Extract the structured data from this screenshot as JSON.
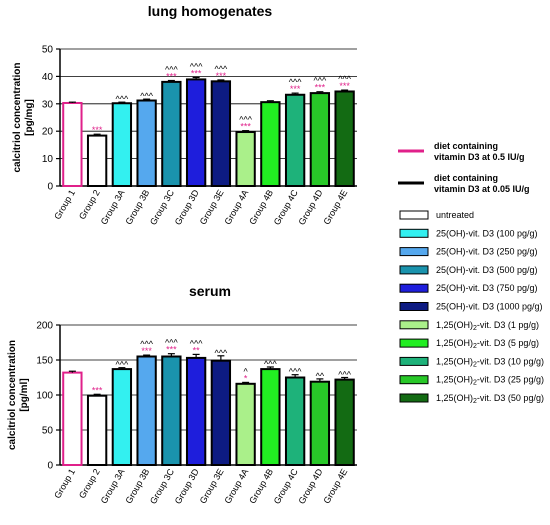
{
  "chart_data": [
    {
      "type": "bar",
      "title": "lung homogenates",
      "ylabel": "calcitriol concentration\n[pg/mg]",
      "ylim": [
        0,
        50
      ],
      "yticks": [
        0,
        10,
        20,
        30,
        40,
        50
      ],
      "grid": "horizontal lines",
      "categories": [
        "Group 1",
        "Group 2",
        "Group 3A",
        "Group 3B",
        "Group 3C",
        "Group 3D",
        "Group 3E",
        "Group 4A",
        "Group 4B",
        "Group 4C",
        "Group 4D",
        "Group 4E"
      ],
      "values": [
        30.3,
        18.4,
        30.2,
        31.2,
        38.0,
        38.9,
        38.2,
        19.7,
        30.6,
        33.3,
        33.9,
        34.5
      ],
      "errors": [
        0.3,
        0.5,
        0.4,
        0.5,
        0.5,
        0.7,
        0.5,
        0.5,
        0.5,
        0.6,
        0.5,
        0.5
      ],
      "significance_pink": [
        "",
        "***",
        "",
        "",
        "***",
        "***",
        "***",
        "***",
        "",
        "***",
        "***",
        "***"
      ],
      "significance_black": [
        "",
        "",
        "^^^",
        "^^^",
        "^^^",
        "^^^",
        "^^^",
        "^^^",
        "",
        "^^^",
        "^^^",
        "^^^"
      ]
    },
    {
      "type": "bar",
      "title": "serum",
      "ylabel": "calcitriol concentration\n[pg/ml]",
      "ylim": [
        0,
        200
      ],
      "yticks": [
        0,
        50,
        100,
        150,
        200
      ],
      "grid": "horizontal lines",
      "categories": [
        "Group 1",
        "Group 2",
        "Group 3A",
        "Group 3B",
        "Group 3C",
        "Group 3D",
        "Group 3E",
        "Group 4A",
        "Group 4B",
        "Group 4C",
        "Group 4D",
        "Group 4E"
      ],
      "values": [
        132,
        99,
        137,
        155,
        155,
        153,
        149,
        116,
        137,
        125,
        119,
        122
      ],
      "errors": [
        2,
        2,
        2,
        2,
        4,
        5,
        7,
        2,
        3,
        4,
        4,
        3
      ],
      "significance_pink": [
        "",
        "***",
        "",
        "***",
        "***",
        "**",
        "",
        "*",
        "",
        "",
        "",
        ""
      ],
      "significance_black": [
        "",
        "",
        "^^^",
        "^^^",
        "^^^",
        "^^^",
        "^^^",
        "^",
        "^^^",
        "^^^",
        "^^",
        "^^^"
      ]
    }
  ],
  "legend": [
    {
      "label": "diet containing\nvitamin D3 at 0.5 IU/g",
      "style": "line",
      "color": "#e0208a"
    },
    {
      "label": "diet containing\nvitamin D3 at 0.05 IU/g",
      "style": "line",
      "color": "#000000"
    },
    {
      "label": "untreated",
      "style": "box",
      "color": "#ffffff"
    },
    {
      "label": "25(OH)-vit. D3 (100 pg/g)",
      "style": "box",
      "color": "#33f0f0"
    },
    {
      "label": "25(OH)-vit. D3 (250 pg/g)",
      "style": "box",
      "color": "#55a8ee"
    },
    {
      "label": "25(OH)-vit. D3 (500 pg/g)",
      "style": "box",
      "color": "#1a93ad"
    },
    {
      "label": "25(OH)-vit. D3 (750 pg/g)",
      "style": "box",
      "color": "#1e1edc"
    },
    {
      "label": "25(OH)-vit. D3 (1000 pg/g)",
      "style": "box",
      "color": "#0d1b82"
    },
    {
      "label": "1,25(OH)2-vit. D3 (1 pg/g)",
      "style": "box",
      "color": "#aaf08a"
    },
    {
      "label": "1,25(OH)2-vit. D3 (5 pg/g)",
      "style": "box",
      "color": "#22ee22"
    },
    {
      "label": "1,25(OH)2-vit. D3 (10 pg/g)",
      "style": "box",
      "color": "#1eb27a"
    },
    {
      "label": "1,25(OH)2-vit. D3 (25 pg/g)",
      "style": "box",
      "color": "#28c828"
    },
    {
      "label": "1,25(OH)2-vit. D3 (50 pg/g)",
      "style": "box",
      "color": "#136b13"
    }
  ],
  "colors": {
    "pink": "#e0208a",
    "bars": [
      "#ffffff",
      "#ffffff",
      "#33f0f0",
      "#55a8ee",
      "#1a93ad",
      "#1e1edc",
      "#0d1b82",
      "#aaf08a",
      "#22ee22",
      "#1eb27a",
      "#28c828",
      "#136b13"
    ],
    "bar_outlines": [
      "#e0208a",
      "#000000",
      "#000000",
      "#000000",
      "#000000",
      "#000000",
      "#000000",
      "#000000",
      "#000000",
      "#000000",
      "#000000",
      "#000000"
    ]
  }
}
